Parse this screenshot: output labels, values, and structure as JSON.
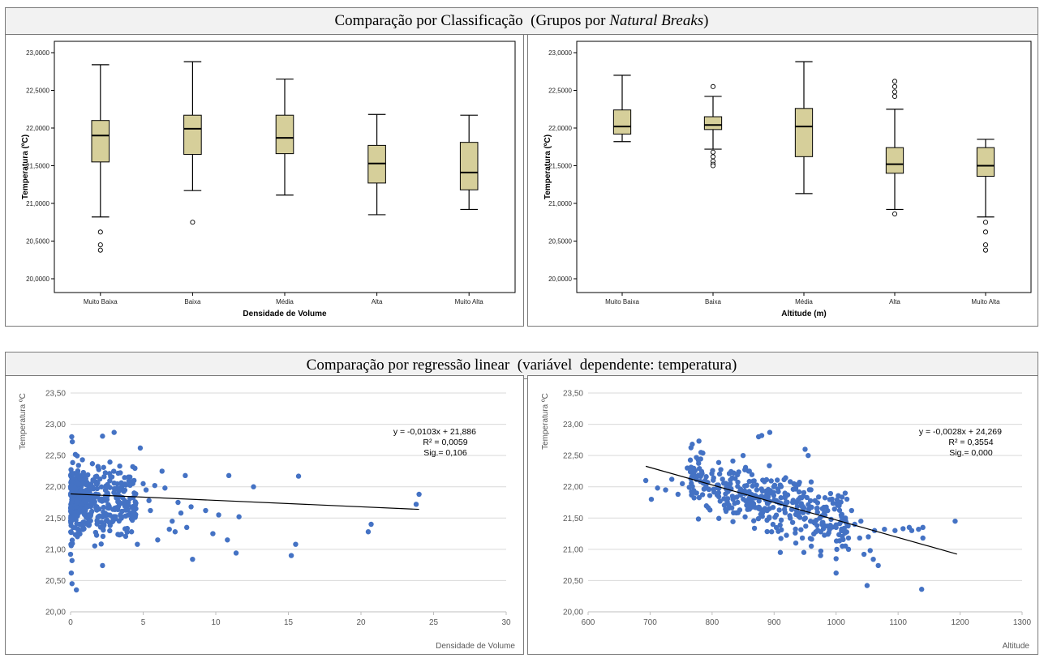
{
  "headers": {
    "top": {
      "prefix": "Comparação por Classificação  (Grupos por ",
      "italic": "Natural Breaks",
      "suffix": ")"
    },
    "bottom": "Comparação por regressão linear  (variável  dependente: temperatura)"
  },
  "colors": {
    "box_fill": "#d6cf9a",
    "box_stroke": "#000000",
    "scatter_point": "#4472c4",
    "trendline": "#000000",
    "gridline": "#d9d9d9"
  },
  "chart_data": [
    {
      "type": "boxplot",
      "xlabel": "Densidade de Volume",
      "ylabel": "Temperatura (ºC)",
      "ylim": [
        20.0,
        23.0
      ],
      "yticks": [
        "20,0000",
        "20,5000",
        "21,0000",
        "21,5000",
        "22,0000",
        "22,5000",
        "23,0000"
      ],
      "categories": [
        "Muito Baixa",
        "Baixa",
        "Média",
        "Alta",
        "Muito Alta"
      ],
      "boxes": [
        {
          "min": 20.82,
          "q1": 21.55,
          "median": 21.9,
          "q3": 22.1,
          "max": 22.84,
          "outliers": [
            20.62,
            20.45,
            20.38
          ]
        },
        {
          "min": 21.17,
          "q1": 21.65,
          "median": 21.99,
          "q3": 22.17,
          "max": 22.88,
          "outliers": [
            20.75
          ]
        },
        {
          "min": 21.11,
          "q1": 21.66,
          "median": 21.87,
          "q3": 22.17,
          "max": 22.65,
          "outliers": []
        },
        {
          "min": 20.85,
          "q1": 21.27,
          "median": 21.53,
          "q3": 21.77,
          "max": 22.18,
          "outliers": []
        },
        {
          "min": 20.92,
          "q1": 21.18,
          "median": 21.41,
          "q3": 21.81,
          "max": 22.17,
          "outliers": []
        }
      ]
    },
    {
      "type": "boxplot",
      "xlabel": "Altitude (m)",
      "ylabel": "Temperatura (ºC)",
      "ylim": [
        20.0,
        23.0
      ],
      "yticks": [
        "20,0000",
        "20,5000",
        "21,0000",
        "21,5000",
        "22,0000",
        "22,5000",
        "23,0000"
      ],
      "categories": [
        "Muito Baixa",
        "Baixa",
        "Média",
        "Alta",
        "Muito Alta"
      ],
      "boxes": [
        {
          "min": 21.82,
          "q1": 21.92,
          "median": 22.02,
          "q3": 22.24,
          "max": 22.7,
          "outliers": []
        },
        {
          "min": 21.72,
          "q1": 21.98,
          "median": 22.04,
          "q3": 22.15,
          "max": 22.42,
          "outliers": [
            22.55,
            21.68,
            21.62,
            21.56,
            21.52,
            21.5
          ]
        },
        {
          "min": 21.13,
          "q1": 21.62,
          "median": 22.02,
          "q3": 22.26,
          "max": 22.88,
          "outliers": []
        },
        {
          "min": 20.92,
          "q1": 21.4,
          "median": 21.52,
          "q3": 21.74,
          "max": 22.25,
          "outliers": [
            22.62,
            22.55,
            22.48,
            22.42,
            20.86
          ]
        },
        {
          "min": 20.82,
          "q1": 21.36,
          "median": 21.5,
          "q3": 21.74,
          "max": 21.85,
          "outliers": [
            20.75,
            20.62,
            20.45,
            20.38
          ]
        }
      ]
    },
    {
      "type": "scatter",
      "xlabel": "Densidade de Volume",
      "ylabel": "Temperatura ºC",
      "xlim": [
        0,
        30
      ],
      "ylim": [
        20.0,
        23.5
      ],
      "xticks": [
        "0",
        "5",
        "10",
        "15",
        "20",
        "25",
        "30"
      ],
      "yticks": [
        "20,00",
        "20,50",
        "21,00",
        "21,50",
        "22,00",
        "22,50",
        "23,00",
        "23,50"
      ],
      "trendline": {
        "slope": -0.0103,
        "intercept": 21.886
      },
      "equation": "y = -0,0103x + 21,886",
      "r2": "R² = 0,0059",
      "sig": "Sig.= 0,106",
      "points_generated": {
        "count": 420,
        "x_range": [
          0,
          4.5
        ],
        "y_range": [
          20.35,
          22.88
        ]
      },
      "points": [
        [
          3.4,
          21.73
        ],
        [
          3.8,
          21.72
        ],
        [
          4.2,
          21.28
        ],
        [
          4.5,
          21.65
        ],
        [
          4.6,
          21.08
        ],
        [
          4.8,
          22.62
        ],
        [
          5.0,
          22.05
        ],
        [
          5.2,
          21.95
        ],
        [
          5.4,
          21.78
        ],
        [
          5.5,
          21.62
        ],
        [
          5.8,
          22.02
        ],
        [
          6.0,
          21.15
        ],
        [
          6.3,
          22.25
        ],
        [
          6.5,
          21.98
        ],
        [
          6.8,
          21.32
        ],
        [
          7.0,
          21.45
        ],
        [
          7.2,
          21.28
        ],
        [
          7.4,
          21.75
        ],
        [
          7.6,
          21.58
        ],
        [
          7.9,
          22.18
        ],
        [
          8.0,
          21.35
        ],
        [
          8.3,
          21.68
        ],
        [
          8.4,
          20.84
        ],
        [
          9.3,
          21.62
        ],
        [
          9.8,
          21.25
        ],
        [
          10.2,
          21.55
        ],
        [
          10.8,
          21.15
        ],
        [
          10.9,
          22.18
        ],
        [
          11.4,
          20.94
        ],
        [
          11.6,
          21.52
        ],
        [
          12.6,
          22.0
        ],
        [
          15.2,
          20.9
        ],
        [
          15.5,
          21.08
        ],
        [
          15.7,
          22.17
        ],
        [
          20.5,
          21.28
        ],
        [
          20.7,
          21.4
        ],
        [
          23.8,
          21.72
        ],
        [
          24.0,
          21.88
        ],
        [
          2.2,
          20.74
        ],
        [
          0.4,
          20.35
        ],
        [
          0.1,
          20.45
        ],
        [
          0.05,
          20.62
        ],
        [
          0.1,
          20.82
        ],
        [
          0.0,
          20.92
        ],
        [
          0.08,
          22.8
        ],
        [
          0.12,
          22.72
        ],
        [
          3.0,
          22.87
        ],
        [
          2.2,
          22.81
        ]
      ]
    },
    {
      "type": "scatter",
      "xlabel": "Altitude",
      "ylabel": "Temperatura ºC",
      "xlim": [
        600,
        1300
      ],
      "ylim": [
        20.0,
        23.5
      ],
      "xticks": [
        "600",
        "700",
        "800",
        "900",
        "1000",
        "1100",
        "1200",
        "1300"
      ],
      "yticks": [
        "20,00",
        "20,50",
        "21,00",
        "21,50",
        "22,00",
        "22,50",
        "23,00",
        "23,50"
      ],
      "trendline": {
        "slope": -0.0028,
        "intercept": 24.269
      },
      "equation": "y = -0,0028x + 24,269",
      "r2": "R² = 0,3554",
      "sig": "Sig.= 0,000",
      "points_generated": {
        "count": 380,
        "x_range": [
          760,
          1020
        ],
        "y_range": [
          20.9,
          22.85
        ]
      },
      "points": [
        [
          693,
          22.1
        ],
        [
          702,
          21.8
        ],
        [
          712,
          21.98
        ],
        [
          725,
          21.95
        ],
        [
          735,
          22.12
        ],
        [
          745,
          21.88
        ],
        [
          752,
          22.05
        ],
        [
          760,
          22.3
        ],
        [
          768,
          22.68
        ],
        [
          775,
          21.9
        ],
        [
          782,
          22.55
        ],
        [
          880,
          22.82
        ],
        [
          893,
          22.87
        ],
        [
          875,
          22.8
        ],
        [
          850,
          22.5
        ],
        [
          950,
          22.6
        ],
        [
          955,
          22.5
        ],
        [
          1000,
          20.85
        ],
        [
          1000,
          20.62
        ],
        [
          1010,
          21.05
        ],
        [
          1020,
          21.0
        ],
        [
          1025,
          21.62
        ],
        [
          1030,
          21.4
        ],
        [
          1038,
          21.18
        ],
        [
          1045,
          20.92
        ],
        [
          1050,
          20.42
        ],
        [
          1055,
          20.98
        ],
        [
          1060,
          20.84
        ],
        [
          1068,
          20.74
        ],
        [
          1078,
          21.32
        ],
        [
          1095,
          21.3
        ],
        [
          1108,
          21.33
        ],
        [
          1118,
          21.35
        ],
        [
          1122,
          21.3
        ],
        [
          1133,
          21.32
        ],
        [
          1138,
          20.36
        ],
        [
          1140,
          21.35
        ],
        [
          1140,
          21.18
        ],
        [
          1192,
          21.45
        ],
        [
          1005,
          21.7
        ],
        [
          1015,
          21.5
        ],
        [
          1040,
          21.45
        ],
        [
          1052,
          21.2
        ],
        [
          1062,
          21.3
        ],
        [
          960,
          21.05
        ],
        [
          975,
          20.9
        ],
        [
          948,
          20.95
        ],
        [
          935,
          21.1
        ],
        [
          910,
          20.95
        ],
        [
          1000,
          21.35
        ]
      ]
    }
  ]
}
